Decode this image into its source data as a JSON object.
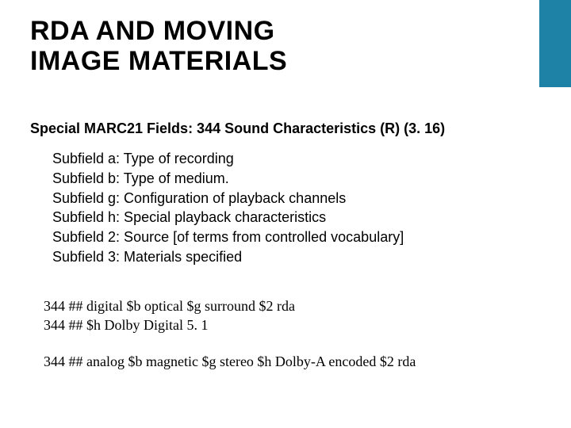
{
  "accent_color": "#1e81a6",
  "title_line1": "RDA AND MOVING",
  "title_line2": "IMAGE MATERIALS",
  "section_heading": "Special MARC21 Fields: 344 Sound Characteristics (R) (3. 16)",
  "subfields": [
    "Subfield a: Type of recording",
    "Subfield b: Type of medium.",
    "Subfield g: Configuration of playback channels",
    "Subfield h: Special playback characteristics",
    "Subfield 2: Source [of terms from controlled vocabulary]",
    "Subfield 3: Materials specified"
  ],
  "examples_a": [
    "344 ## digital $b optical $g surround $2 rda",
    "344 ## $h Dolby Digital 5. 1"
  ],
  "examples_b": [
    "344 ## analog $b magnetic $g stereo $h Dolby-A encoded $2 rda"
  ]
}
